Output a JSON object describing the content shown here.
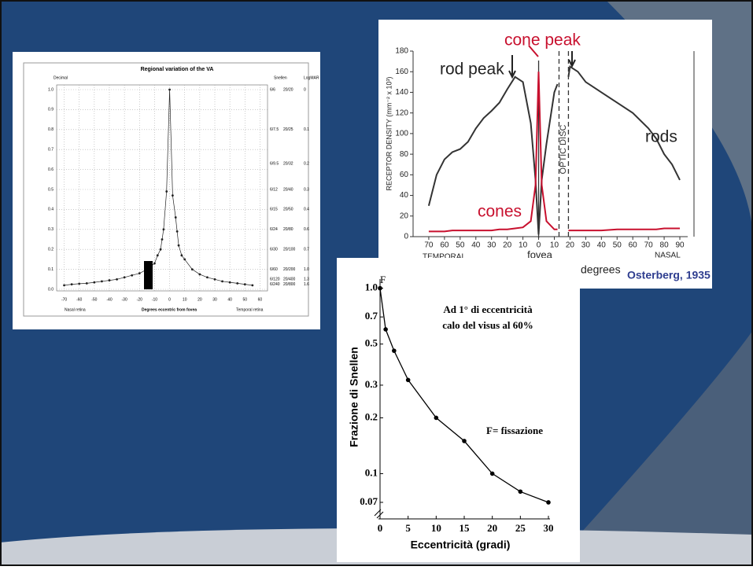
{
  "chart_data": [
    {
      "type": "line",
      "title": "Regional variation of the VA",
      "y_label": "Decimal",
      "x_label": "Degrees eccentric from fovea",
      "x_left_note": "Nasal retina",
      "x_right_note": "Temporal retina",
      "snellen_header": "Snellen",
      "logmar_header": "LogMAR",
      "snellen_scale": [
        {
          "value": 1.0,
          "label": "6/6",
          "us": "20/20",
          "logmar": "0"
        },
        {
          "value": 0.8,
          "label": "6/7.5",
          "us": "20/25",
          "logmar": "0.1"
        },
        {
          "value": 0.63,
          "label": "6/9.5",
          "us": "20/32",
          "logmar": "0.2"
        },
        {
          "value": 0.5,
          "label": "6/12",
          "us": "20/40",
          "logmar": "0.3"
        },
        {
          "value": 0.4,
          "label": "6/15",
          "us": "20/50",
          "logmar": "0.4"
        },
        {
          "value": 0.3,
          "label": "6/24",
          "us": "20/80",
          "logmar": "0.6"
        },
        {
          "value": 0.2,
          "label": "6/30",
          "us": "20/100",
          "logmar": "0.7"
        },
        {
          "value": 0.1,
          "label": "6/60",
          "us": "20/200",
          "logmar": "1.0"
        },
        {
          "value": 0.05,
          "label": "6/120",
          "us": "20/400",
          "logmar": "1.3"
        },
        {
          "value": 0.025,
          "label": "6/240",
          "us": "20/800",
          "logmar": "1.6"
        }
      ],
      "x": [
        -70,
        -65,
        -60,
        -55,
        -50,
        -45,
        -40,
        -35,
        -30,
        -25,
        -20,
        -15,
        -10,
        -8,
        -6,
        -5,
        -4,
        -2,
        0,
        2,
        4,
        5,
        6,
        8,
        10,
        15,
        20,
        25,
        30,
        35,
        40,
        45,
        50,
        55
      ],
      "values": [
        0.02,
        0.025,
        0.028,
        0.03,
        0.035,
        0.04,
        0.045,
        0.05,
        0.06,
        0.07,
        0.08,
        0.1,
        0.13,
        0.17,
        0.2,
        0.25,
        0.3,
        0.49,
        1.0,
        0.47,
        0.36,
        0.29,
        0.22,
        0.17,
        0.15,
        0.1,
        0.075,
        0.06,
        0.05,
        0.04,
        0.035,
        0.03,
        0.025,
        0.02
      ],
      "color": "#222222",
      "xlim": [
        -75,
        65
      ],
      "ylim": [
        0,
        1.0
      ],
      "xticks": [
        -70,
        -60,
        -50,
        -40,
        -30,
        -20,
        -10,
        0,
        10,
        20,
        30,
        40,
        50,
        60
      ],
      "yticks": [
        {
          "value": 0,
          "label": "0.0"
        },
        {
          "value": 0.1,
          "label": "0.1"
        },
        {
          "value": 0.2,
          "label": "0.2"
        },
        {
          "value": 0.3,
          "label": "0.3"
        },
        {
          "value": 0.4,
          "label": "0.4"
        },
        {
          "value": 0.5,
          "label": "0.5"
        },
        {
          "value": 0.6,
          "label": "0.6"
        },
        {
          "value": 0.7,
          "label": "0.7"
        },
        {
          "value": 0.8,
          "label": "0.8"
        },
        {
          "value": 0.9,
          "label": "0.9"
        },
        {
          "value": 1.0,
          "label": "1.0"
        }
      ],
      "grid": true
    },
    {
      "type": "line",
      "y_label": "RECEPTOR DENSITY (mm⁻² x 10³)",
      "annotations": {
        "rod_peak": "rod peak",
        "cone_peak": "cone peak",
        "cones": "cones",
        "rods": "rods",
        "fovea": "fovea",
        "temporal": "TEMPORAL",
        "nasal": "NASAL",
        "optic_disc": "OPTIC DISC",
        "degrees": "degrees",
        "source": "Osterberg, 1935"
      },
      "x": [
        -70,
        -65,
        -60,
        -55,
        -50,
        -45,
        -40,
        -35,
        -30,
        -25,
        -20,
        -15,
        -10,
        -5,
        -2,
        0,
        2,
        5,
        10,
        12,
        15,
        19,
        20,
        25,
        30,
        40,
        50,
        60,
        70,
        75,
        80,
        85,
        90
      ],
      "series": [
        {
          "name": "rods",
          "color": "#333333",
          "values": [
            30,
            60,
            75,
            82,
            85,
            92,
            105,
            115,
            122,
            130,
            143,
            155,
            150,
            110,
            55,
            2,
            55,
            90,
            140,
            148,
            null,
            155,
            165,
            160,
            150,
            140,
            130,
            120,
            105,
            95,
            80,
            70,
            55
          ]
        },
        {
          "name": "cones",
          "color": "#c8102e",
          "values": [
            5,
            5,
            5,
            6,
            6,
            6,
            6,
            6,
            6,
            7,
            7,
            8,
            9,
            15,
            50,
            160,
            50,
            15,
            7,
            7,
            null,
            6,
            6,
            6,
            6,
            6,
            7,
            7,
            7,
            7,
            8,
            8,
            8
          ]
        }
      ],
      "optic_disc": [
        13,
        19
      ],
      "xlim": [
        -80,
        95
      ],
      "ylim": [
        0,
        180
      ],
      "xticks": [
        {
          "value": -70,
          "label": "70"
        },
        {
          "value": -60,
          "label": "60"
        },
        {
          "value": -50,
          "label": "50"
        },
        {
          "value": -40,
          "label": "40"
        },
        {
          "value": -30,
          "label": "30"
        },
        {
          "value": -20,
          "label": "20"
        },
        {
          "value": -10,
          "label": "10"
        },
        0,
        10,
        20,
        30,
        40,
        50,
        60,
        70,
        80,
        90
      ],
      "yticks": [
        0,
        20,
        40,
        60,
        80,
        100,
        120,
        140,
        160,
        180
      ]
    },
    {
      "type": "line",
      "x_label": "Eccentricità (gradi)",
      "y_label": "Frazione di Snellen",
      "annotations": {
        "f": "F",
        "note1": "Ad 1° di eccentricità",
        "note2": "calo del visus  al 60%",
        "legend": "F= fissazione"
      },
      "x": [
        0,
        1,
        2.5,
        5,
        10,
        15,
        20,
        25,
        30
      ],
      "values": [
        1.0,
        0.6,
        0.46,
        0.32,
        0.2,
        0.15,
        0.1,
        0.08,
        0.07
      ],
      "color": "#000000",
      "log_y": true,
      "xlim": [
        0,
        30
      ],
      "ylim": [
        0.057,
        1.12
      ],
      "xticks": [
        0,
        5,
        10,
        15,
        20,
        25,
        30
      ],
      "yticks": [
        {
          "value": 1.0,
          "label": "1.0"
        },
        0.7,
        0.5,
        0.3,
        0.2,
        0.1,
        0.07
      ]
    }
  ]
}
